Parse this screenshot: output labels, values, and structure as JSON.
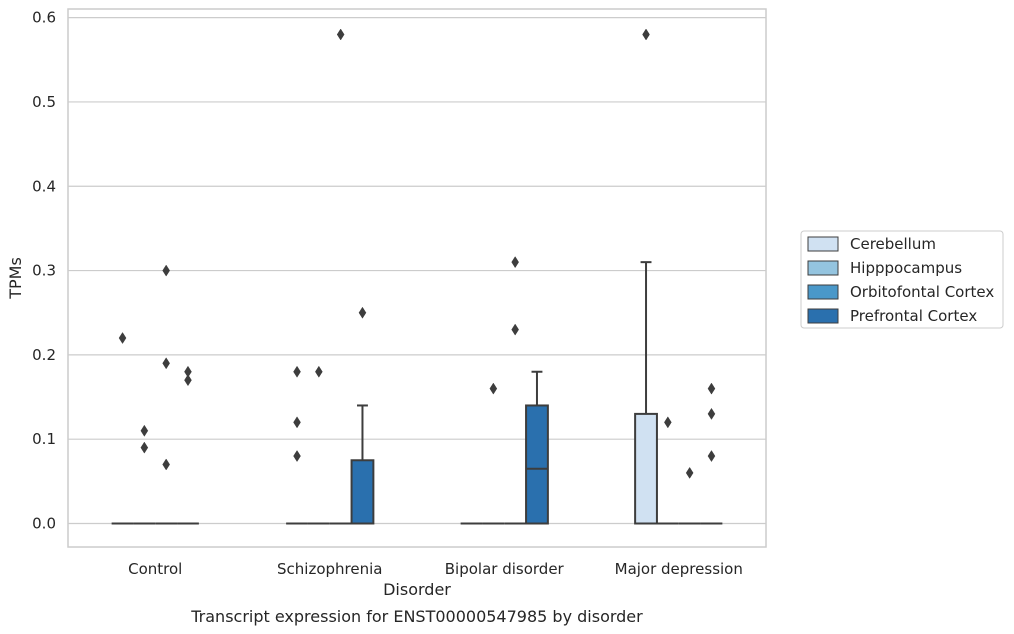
{
  "chart_data": {
    "type": "box",
    "xlabel": "Disorder",
    "ylabel": "TPMs",
    "caption": "Transcript expression for ENST00000547985 by disorder",
    "ylim": [
      -0.03,
      0.61
    ],
    "yticks": [
      "0.0",
      "0.1",
      "0.2",
      "0.3",
      "0.4",
      "0.5",
      "0.6"
    ],
    "ytick_values": [
      0.0,
      0.1,
      0.2,
      0.3,
      0.4,
      0.5,
      0.6
    ],
    "grid": "horizontal",
    "legend_position": "right",
    "categories": [
      "Control",
      "Schizophrenia",
      "Bipolar disorder",
      "Major depression"
    ],
    "series": [
      {
        "name": "Cerebellum",
        "color": "#d0e1f2",
        "boxes": [
          {
            "q1": 0,
            "median": 0,
            "q3": 0,
            "whisker_low": 0,
            "whisker_high": 0,
            "outliers": [
              0.22
            ]
          },
          {
            "q1": 0,
            "median": 0,
            "q3": 0,
            "whisker_low": 0,
            "whisker_high": 0,
            "outliers": [
              0.18,
              0.12,
              0.08
            ]
          },
          {
            "q1": 0,
            "median": 0,
            "q3": 0,
            "whisker_low": 0,
            "whisker_high": 0,
            "outliers": []
          },
          {
            "q1": 0,
            "median": 0,
            "q3": 0.13,
            "whisker_low": 0,
            "whisker_high": 0.31,
            "outliers": [
              0.58
            ]
          }
        ]
      },
      {
        "name": "Hipppocampus",
        "color": "#94c4df",
        "boxes": [
          {
            "q1": 0,
            "median": 0,
            "q3": 0,
            "whisker_low": 0,
            "whisker_high": 0,
            "outliers": [
              0.11,
              0.09
            ]
          },
          {
            "q1": 0,
            "median": 0,
            "q3": 0,
            "whisker_low": 0,
            "whisker_high": 0,
            "outliers": [
              0.18
            ]
          },
          {
            "q1": 0,
            "median": 0,
            "q3": 0,
            "whisker_low": 0,
            "whisker_high": 0,
            "outliers": [
              0.16
            ]
          },
          {
            "q1": 0,
            "median": 0,
            "q3": 0,
            "whisker_low": 0,
            "whisker_high": 0,
            "outliers": [
              0.12
            ]
          }
        ]
      },
      {
        "name": "Orbitofontal Cortex",
        "color": "#4a98c9",
        "boxes": [
          {
            "q1": 0,
            "median": 0,
            "q3": 0,
            "whisker_low": 0,
            "whisker_high": 0,
            "outliers": [
              0.3,
              0.19,
              0.07
            ]
          },
          {
            "q1": 0,
            "median": 0,
            "q3": 0,
            "whisker_low": 0,
            "whisker_high": 0,
            "outliers": [
              0.58
            ]
          },
          {
            "q1": 0,
            "median": 0,
            "q3": 0,
            "whisker_low": 0,
            "whisker_high": 0,
            "outliers": [
              0.31,
              0.23
            ]
          },
          {
            "q1": 0,
            "median": 0,
            "q3": 0,
            "whisker_low": 0,
            "whisker_high": 0,
            "outliers": [
              0.06
            ]
          }
        ]
      },
      {
        "name": "Prefrontal Cortex",
        "color": "#2a70ae",
        "boxes": [
          {
            "q1": 0,
            "median": 0,
            "q3": 0,
            "whisker_low": 0,
            "whisker_high": 0,
            "outliers": [
              0.18,
              0.17
            ]
          },
          {
            "q1": 0,
            "median": 0,
            "q3": 0.075,
            "whisker_low": 0,
            "whisker_high": 0.14,
            "outliers": [
              0.25
            ]
          },
          {
            "q1": 0,
            "median": 0.065,
            "q3": 0.14,
            "whisker_low": 0,
            "whisker_high": 0.18,
            "outliers": []
          },
          {
            "q1": 0,
            "median": 0,
            "q3": 0,
            "whisker_low": 0,
            "whisker_high": 0,
            "outliers": [
              0.16,
              0.13,
              0.08
            ]
          }
        ]
      }
    ]
  }
}
